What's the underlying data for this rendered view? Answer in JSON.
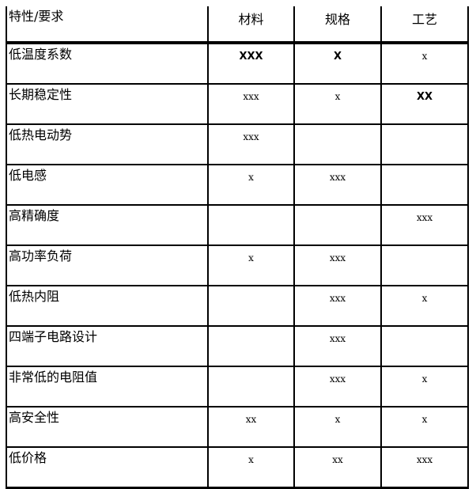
{
  "header": {
    "label": "特性/要求",
    "columns": [
      "材料",
      "规格",
      "工艺"
    ]
  },
  "rows": [
    {
      "label": "低温度系数",
      "cells": [
        {
          "text": "XXX",
          "bold": true
        },
        {
          "text": "X",
          "bold": true
        },
        {
          "text": "x",
          "bold": false
        }
      ]
    },
    {
      "label": "长期稳定性",
      "cells": [
        {
          "text": "xxx",
          "bold": false
        },
        {
          "text": "x",
          "bold": false
        },
        {
          "text": "XX",
          "bold": true
        }
      ]
    },
    {
      "label": "低热电动势",
      "cells": [
        {
          "text": "xxx",
          "bold": false
        },
        {
          "text": "",
          "bold": false
        },
        {
          "text": "",
          "bold": false
        }
      ]
    },
    {
      "label": "低电感",
      "cells": [
        {
          "text": "x",
          "bold": false
        },
        {
          "text": "xxx",
          "bold": false
        },
        {
          "text": "",
          "bold": false
        }
      ]
    },
    {
      "label": "高精确度",
      "cells": [
        {
          "text": "",
          "bold": false
        },
        {
          "text": "",
          "bold": false
        },
        {
          "text": "xxx",
          "bold": false
        }
      ]
    },
    {
      "label": "高功率负荷",
      "cells": [
        {
          "text": "x",
          "bold": false
        },
        {
          "text": "xxx",
          "bold": false
        },
        {
          "text": "",
          "bold": false
        }
      ]
    },
    {
      "label": "低热内阻",
      "cells": [
        {
          "text": "",
          "bold": false
        },
        {
          "text": "xxx",
          "bold": false
        },
        {
          "text": "x",
          "bold": false
        }
      ]
    },
    {
      "label": "四端子电路设计",
      "cells": [
        {
          "text": "",
          "bold": false
        },
        {
          "text": "xxx",
          "bold": false
        },
        {
          "text": "",
          "bold": false
        }
      ]
    },
    {
      "label": "非常低的电阻值",
      "cells": [
        {
          "text": "",
          "bold": false
        },
        {
          "text": "xxx",
          "bold": false
        },
        {
          "text": "x",
          "bold": false
        }
      ]
    },
    {
      "label": "高安全性",
      "cells": [
        {
          "text": "xx",
          "bold": false
        },
        {
          "text": "x",
          "bold": false
        },
        {
          "text": "x",
          "bold": false
        }
      ]
    },
    {
      "label": "低价格",
      "cells": [
        {
          "text": "x",
          "bold": false
        },
        {
          "text": "xx",
          "bold": false
        },
        {
          "text": "xxx",
          "bold": false
        }
      ]
    }
  ]
}
